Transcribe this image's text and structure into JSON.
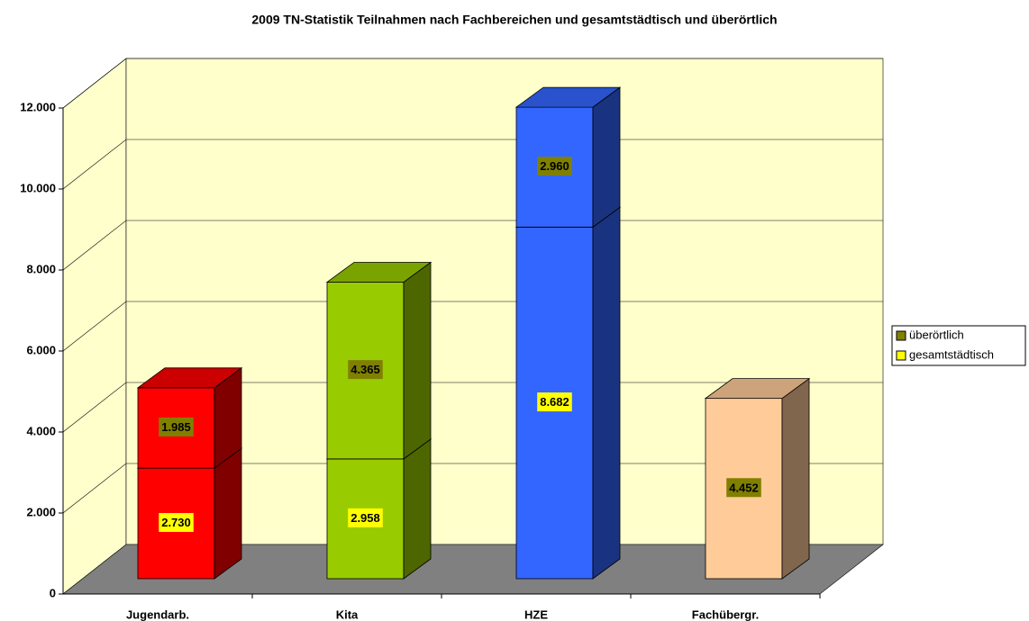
{
  "chart_data": {
    "type": "bar3d_stacked",
    "title": "2009 TN-Statistik Teilnahmen nach Fachbereichen und gesamtstädtisch und überörtlich",
    "categories": [
      "Jugendarb.",
      "Kita",
      "HZE",
      "Fachübergr."
    ],
    "category_colors": [
      "#ff0000",
      "#99cc00",
      "#3366ff",
      "#ffcc99"
    ],
    "series": [
      {
        "name": "gesamtstädtisch",
        "color": "#ffff00",
        "values": [
          2730,
          2958,
          8682,
          null
        ],
        "value_labels": [
          "2.730",
          "2.958",
          "8.682",
          null
        ]
      },
      {
        "name": "überörtlich",
        "color": "#808000",
        "values": [
          1985,
          4365,
          2960,
          4452
        ],
        "value_labels": [
          "1.985",
          "4.365",
          "2.960",
          "4.452"
        ]
      }
    ],
    "ylim": [
      0,
      12000
    ],
    "yticks": [
      0,
      {
        "value": 2000,
        "label": "2.000"
      },
      {
        "value": 4000,
        "label": "4.000"
      },
      {
        "value": 6000,
        "label": "6.000"
      },
      {
        "value": 8000,
        "label": "8.000"
      },
      {
        "value": 10000,
        "label": "10.000"
      },
      {
        "value": 12000,
        "label": "12.000"
      }
    ],
    "grid": true,
    "legend": "right"
  }
}
